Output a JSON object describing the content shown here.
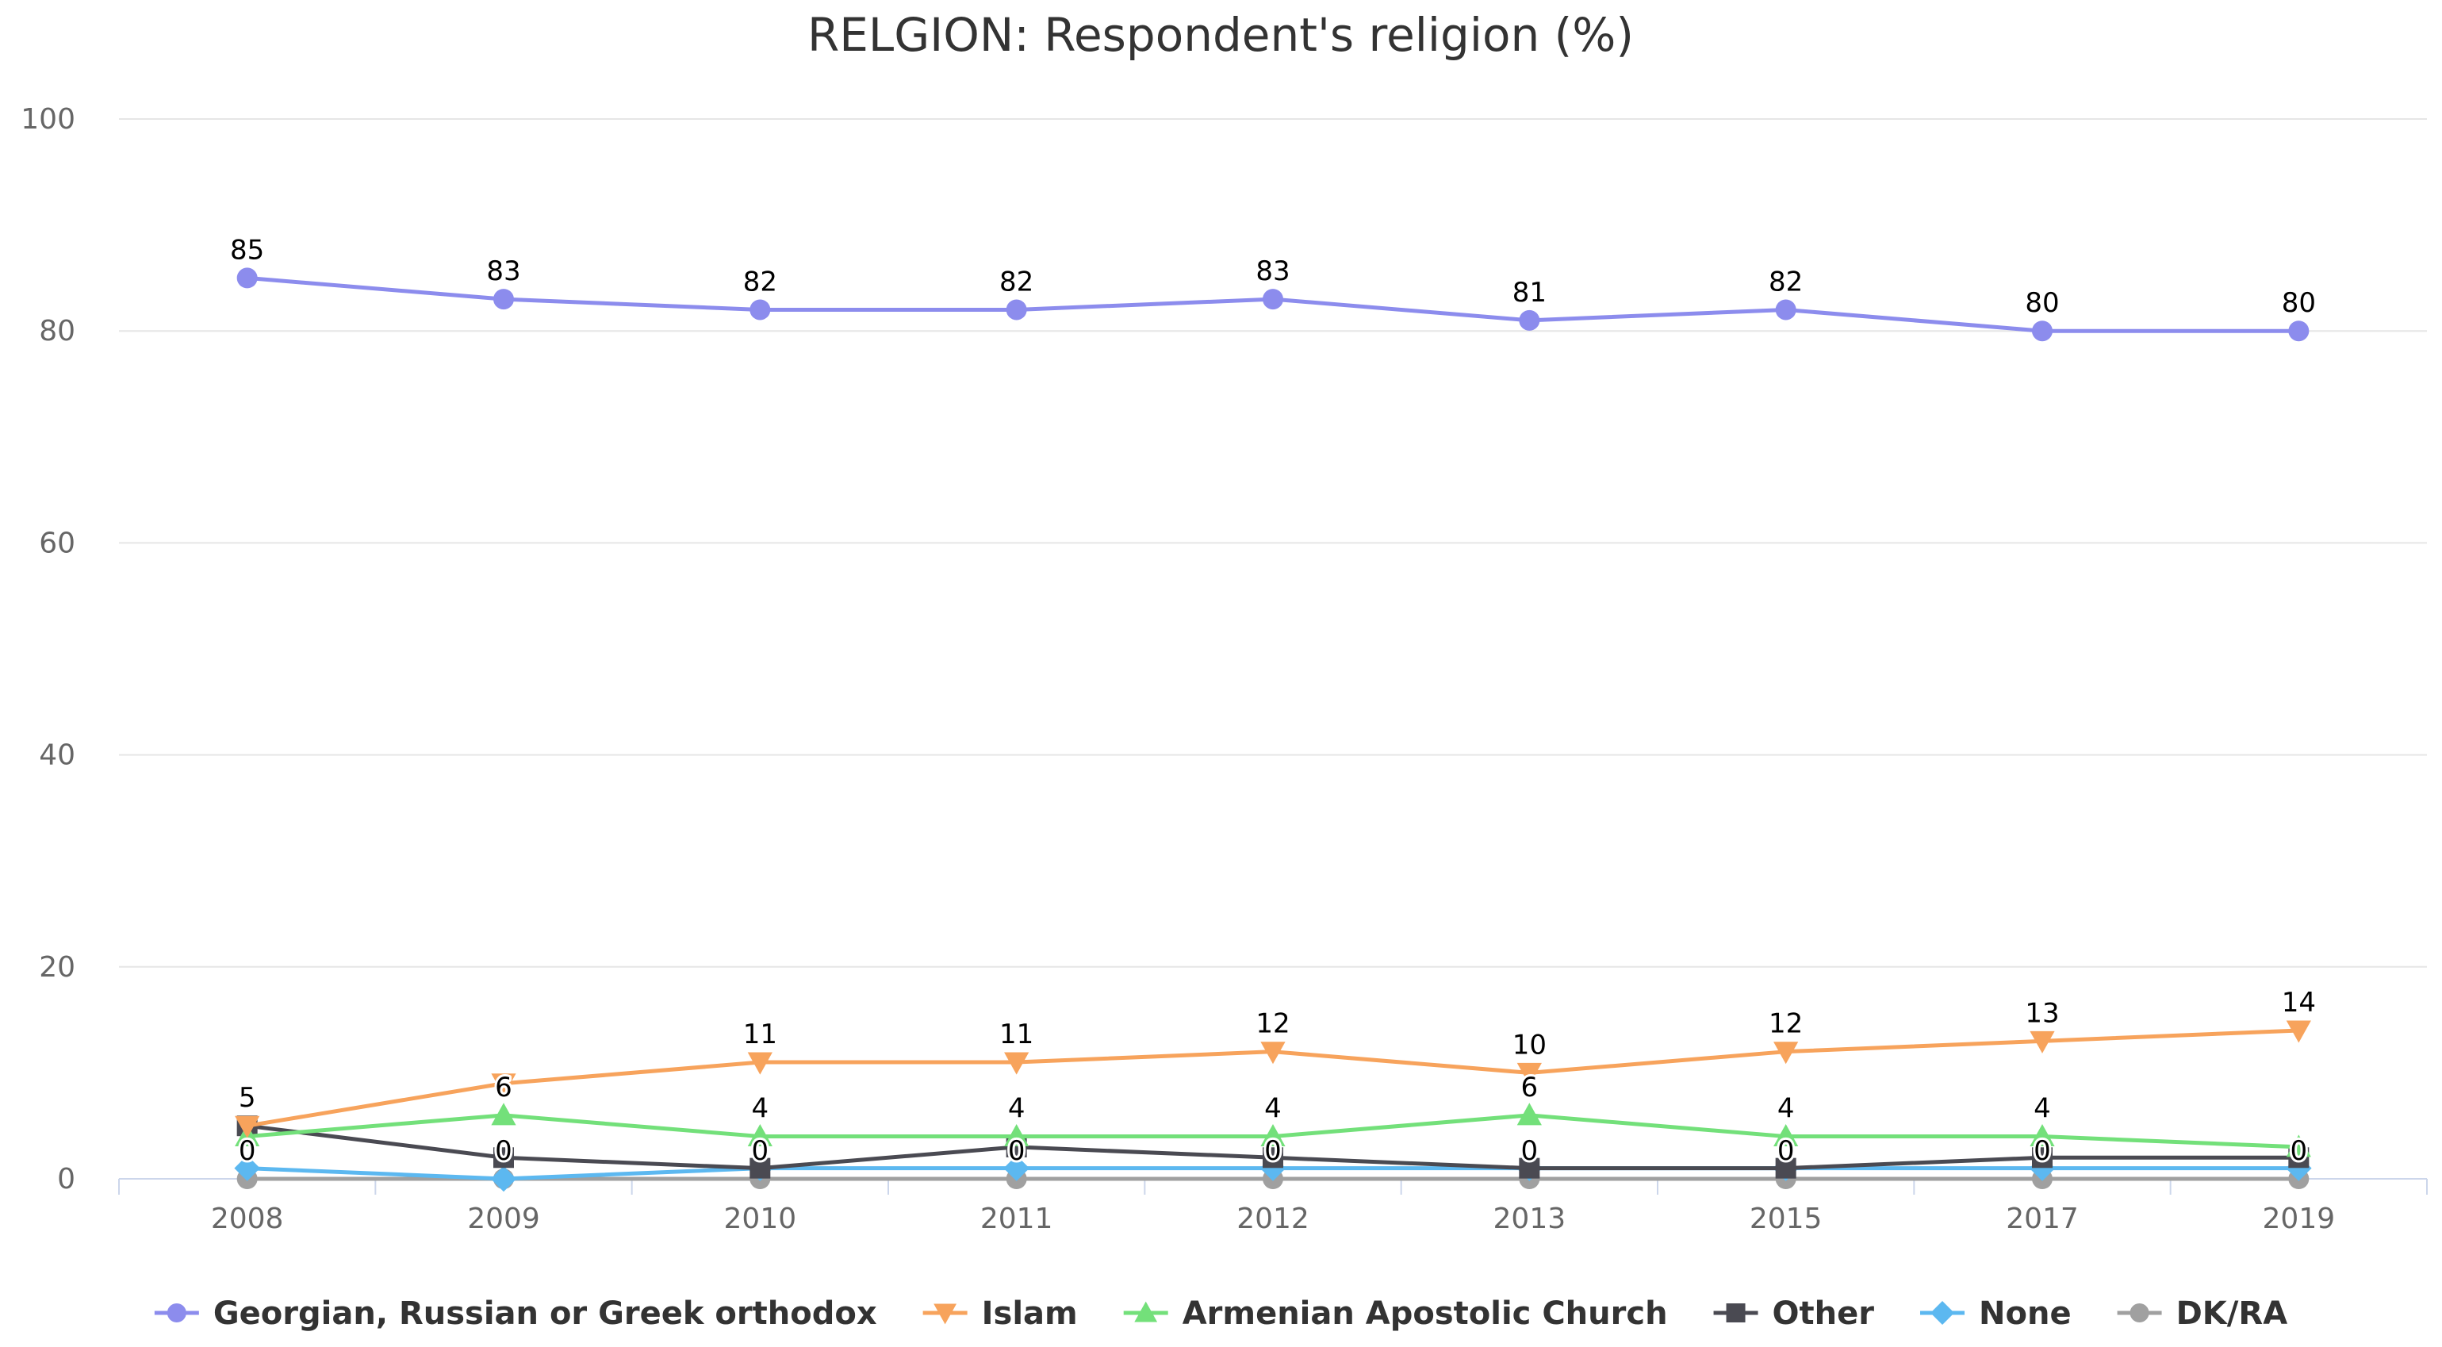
{
  "chart_data": {
    "type": "line",
    "title": "RELGION: Respondent's religion (%)",
    "xlabel": "",
    "ylabel": "",
    "categories": [
      "2008",
      "2009",
      "2010",
      "2011",
      "2012",
      "2013",
      "2015",
      "2017",
      "2019"
    ],
    "ylim": [
      0,
      100
    ],
    "yticks": [
      0,
      20,
      40,
      60,
      80,
      100
    ],
    "grid": true,
    "legend_position": "bottom",
    "series": [
      {
        "name": "Georgian, Russian or Greek orthodox",
        "color": "#8c8ced",
        "marker": "circle",
        "values": [
          85,
          83,
          82,
          82,
          83,
          81,
          82,
          80,
          80
        ],
        "labels": [
          "85",
          "83",
          "82",
          "82",
          "83",
          "81",
          "82",
          "80",
          "80"
        ]
      },
      {
        "name": "Islam",
        "color": "#f7a35c",
        "marker": "triangle-down",
        "values": [
          5,
          9,
          11,
          11,
          12,
          10,
          12,
          13,
          14
        ],
        "labels": [
          "5",
          "",
          "11",
          "11",
          "12",
          "10",
          "12",
          "13",
          "14"
        ]
      },
      {
        "name": "Armenian Apostolic Church",
        "color": "#73e07a",
        "marker": "triangle",
        "values": [
          4,
          6,
          4,
          4,
          4,
          6,
          4,
          4,
          3
        ],
        "labels": [
          "",
          "6",
          "4",
          "4",
          "4",
          "6",
          "4",
          "4",
          ""
        ]
      },
      {
        "name": "Other",
        "color": "#4a4a52",
        "marker": "square",
        "values": [
          5,
          2,
          1,
          3,
          2,
          1,
          1,
          2,
          2
        ],
        "labels": [
          "",
          "",
          "",
          "",
          "",
          "",
          "",
          "",
          ""
        ]
      },
      {
        "name": "None",
        "color": "#5cb8f0",
        "marker": "diamond",
        "values": [
          1,
          0,
          1,
          1,
          1,
          1,
          1,
          1,
          1
        ],
        "labels": [
          "",
          "",
          "",
          "",
          "",
          "",
          "",
          "",
          ""
        ]
      },
      {
        "name": "DK/RA",
        "color": "#a0a0a0",
        "marker": "circle",
        "values": [
          0,
          0,
          0,
          0,
          0,
          0,
          0,
          0,
          0
        ],
        "labels": [
          "0",
          "0",
          "0",
          "0",
          "0",
          "0",
          "0",
          "0",
          "0"
        ]
      }
    ]
  }
}
